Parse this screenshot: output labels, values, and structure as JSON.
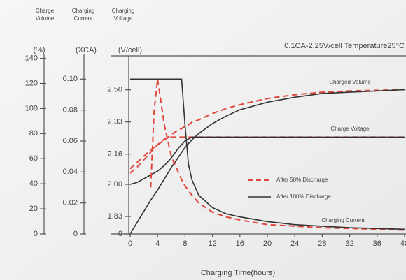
{
  "chart_data": {
    "type": "line",
    "title": "0.1CA-2.25V/cell  Temperature25°C",
    "xlabel": "Charging Time(hours)",
    "axis_titles": {
      "y": [
        "Charge",
        "Volume"
      ],
      "y2": [
        "Charging",
        "Current"
      ],
      "y3": [
        "Charging",
        "Voltage"
      ]
    },
    "axis_units": {
      "y": "(%)",
      "y2": "(XCA)",
      "y3": "(V/cell)"
    },
    "x": [
      0,
      1,
      2,
      3,
      3.5,
      4,
      5,
      6,
      7,
      7.5,
      8,
      8.5,
      9,
      10,
      12,
      14,
      16,
      20,
      24,
      28,
      32,
      36,
      40
    ],
    "xlim": [
      0,
      40
    ],
    "xticks": [
      0,
      4,
      8,
      12,
      16,
      20,
      24,
      28,
      32,
      36,
      40
    ],
    "ylim": [
      0,
      142
    ],
    "yticks": [
      0,
      20,
      40,
      60,
      80,
      100,
      120,
      140
    ],
    "y2lim": [
      0,
      0.115
    ],
    "y2ticks": [
      0,
      0.02,
      0.04,
      0.06,
      0.08,
      {
        "value": 0.1,
        "label": "0.10"
      }
    ],
    "y3lim": [
      0,
      2.68
    ],
    "y3break": [
      0,
      1.83
    ],
    "y3ticks": [
      0,
      1.83,
      {
        "value": 2,
        "label": "2.00"
      },
      2.16,
      2.33,
      {
        "value": 2.5,
        "label": "2.50"
      }
    ],
    "legend": [
      {
        "name": "After 50% Discharge",
        "color": "#e0463c",
        "dashed": true
      },
      {
        "name": "After 100% Discharge",
        "color": "#333333",
        "dashed": false
      }
    ],
    "curves": [
      {
        "label": "Charged Volume",
        "axis": "y",
        "series": [
          {
            "values": [
              52,
              57,
              62,
              67,
              69,
              71,
              75,
              79,
              83,
              84,
              86,
              87,
              89,
              91,
              96,
              100,
              103,
              108,
              111,
              113,
              114,
              114.5,
              115
            ]
          },
          {
            "values": [
              0,
              9,
              18,
              27,
              31,
              35,
              44,
              53,
              61,
              65,
              69,
              72,
              75,
              80,
              88,
              94,
              99,
              105,
              109,
              112,
              113,
              114,
              115
            ]
          }
        ]
      },
      {
        "label": "Charge Voltage",
        "axis": "y3",
        "series": [
          {
            "values": [
              2.06,
              2.09,
              2.13,
              2.17,
              2.19,
              2.21,
              2.24,
              2.25,
              2.25,
              2.25,
              2.25,
              2.25,
              2.25,
              2.25,
              2.25,
              2.25,
              2.25,
              2.25,
              2.25,
              2.25,
              2.25,
              2.25,
              2.25
            ]
          },
          {
            "values": [
              2.0,
              2.01,
              2.03,
              2.05,
              2.06,
              2.07,
              2.1,
              2.14,
              2.19,
              2.21,
              2.23,
              2.24,
              2.25,
              2.25,
              2.25,
              2.25,
              2.25,
              2.25,
              2.25,
              2.25,
              2.25,
              2.25,
              2.25
            ]
          }
        ]
      },
      {
        "label": "Charging Current",
        "axis": "y2",
        "series": [
          {
            "values": [
              null,
              null,
              null,
              0.03,
              0.08,
              0.1,
              0.07,
              0.05,
              0.04,
              0.035,
              0.031,
              0.028,
              0.025,
              0.02,
              0.014,
              0.011,
              0.009,
              0.006,
              0.005,
              0.004,
              0.0035,
              0.003,
              0.0025
            ]
          },
          {
            "values": [
              0.1,
              0.1,
              0.1,
              0.1,
              0.1,
              0.1,
              0.1,
              0.1,
              0.1,
              0.1,
              0.07,
              0.045,
              0.035,
              0.025,
              0.017,
              0.013,
              0.011,
              0.008,
              0.006,
              0.005,
              0.004,
              0.0035,
              0.003
            ]
          }
        ]
      }
    ]
  }
}
